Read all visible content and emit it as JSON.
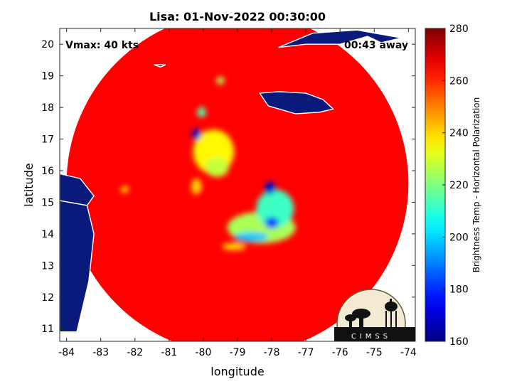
{
  "chart_data": {
    "type": "heatmap",
    "title": "Lisa: 01-Nov-2022 00:30:00",
    "xlabel": "longitude",
    "ylabel": "latitude",
    "xlim": [
      -84.2,
      -73.8
    ],
    "ylim": [
      10.6,
      20.5
    ],
    "xticks": [
      -84,
      -83,
      -82,
      -81,
      -80,
      -79,
      -78,
      -77,
      -76,
      -75,
      -74
    ],
    "yticks": [
      11,
      12,
      13,
      14,
      15,
      16,
      17,
      18,
      19,
      20
    ],
    "annotations": {
      "vmax": "Vmax: 40 kts",
      "time_offset": "00:43 away"
    },
    "colorbar": {
      "label": "Brightness Temp - Horizontal Polarization",
      "range": [
        160,
        280
      ],
      "ticks": [
        160,
        180,
        200,
        220,
        240,
        260,
        280
      ],
      "colormap": "jet"
    },
    "swath": {
      "center_lon": -79.0,
      "center_lat": 15.6,
      "radius_deg": 5.0
    },
    "background_temp": 265,
    "features": [
      {
        "lon": -78.05,
        "lat": 15.45,
        "temp": 170,
        "rx": 0.15,
        "ry": 0.2
      },
      {
        "lon": -78.0,
        "lat": 14.35,
        "temp": 182,
        "rx": 0.2,
        "ry": 0.18
      },
      {
        "lon": -78.6,
        "lat": 13.9,
        "temp": 198,
        "rx": 0.5,
        "ry": 0.15
      },
      {
        "lon": -77.9,
        "lat": 14.8,
        "temp": 212,
        "rx": 0.55,
        "ry": 0.6
      },
      {
        "lon": -78.3,
        "lat": 14.2,
        "temp": 225,
        "rx": 1.0,
        "ry": 0.5
      },
      {
        "lon": -80.2,
        "lat": 17.15,
        "temp": 170,
        "rx": 0.13,
        "ry": 0.18
      },
      {
        "lon": -80.05,
        "lat": 17.85,
        "temp": 215,
        "rx": 0.13,
        "ry": 0.16
      },
      {
        "lon": -79.6,
        "lat": 16.1,
        "temp": 228,
        "rx": 0.35,
        "ry": 0.3
      },
      {
        "lon": -79.7,
        "lat": 16.6,
        "temp": 236,
        "rx": 0.6,
        "ry": 0.7
      },
      {
        "lon": -79.5,
        "lat": 18.85,
        "temp": 225,
        "rx": 0.12,
        "ry": 0.12
      },
      {
        "lon": -82.3,
        "lat": 15.4,
        "temp": 238,
        "rx": 0.12,
        "ry": 0.1
      },
      {
        "lon": -80.2,
        "lat": 15.5,
        "temp": 240,
        "rx": 0.15,
        "ry": 0.25
      },
      {
        "lon": -79.1,
        "lat": 13.6,
        "temp": 240,
        "rx": 0.35,
        "ry": 0.12
      }
    ],
    "land_regions": [
      {
        "name": "Jamaica",
        "lons": [
          -78.35,
          -77.8,
          -77.0,
          -76.5,
          -76.2,
          -76.6,
          -77.3,
          -78.1,
          -78.35
        ],
        "lats": [
          18.45,
          18.5,
          18.45,
          18.25,
          17.95,
          17.85,
          17.8,
          18.05,
          18.45
        ]
      },
      {
        "name": "Cuba",
        "lons": [
          -77.8,
          -77.0,
          -76.0,
          -75.2,
          -74.8,
          -74.2,
          -75.5,
          -76.8,
          -77.8
        ],
        "lats": [
          19.9,
          20.0,
          20.0,
          20.25,
          20.05,
          20.2,
          20.45,
          20.35,
          19.9
        ]
      },
      {
        "name": "Cayman",
        "lons": [
          -81.45,
          -81.1,
          -81.25,
          -81.45
        ],
        "lats": [
          19.35,
          19.35,
          19.28,
          19.35
        ]
      },
      {
        "name": "Honduras",
        "lons": [
          -84.2,
          -83.6,
          -83.2,
          -83.4,
          -84.2
        ],
        "lats": [
          15.9,
          15.75,
          15.2,
          14.9,
          15.05
        ]
      },
      {
        "name": "Nicaragua",
        "lons": [
          -84.2,
          -83.4,
          -83.2,
          -83.35,
          -83.7,
          -84.2
        ],
        "lats": [
          15.05,
          14.9,
          14.0,
          12.5,
          10.9,
          10.9
        ]
      }
    ]
  },
  "logo": {
    "text": "CIMSS"
  }
}
